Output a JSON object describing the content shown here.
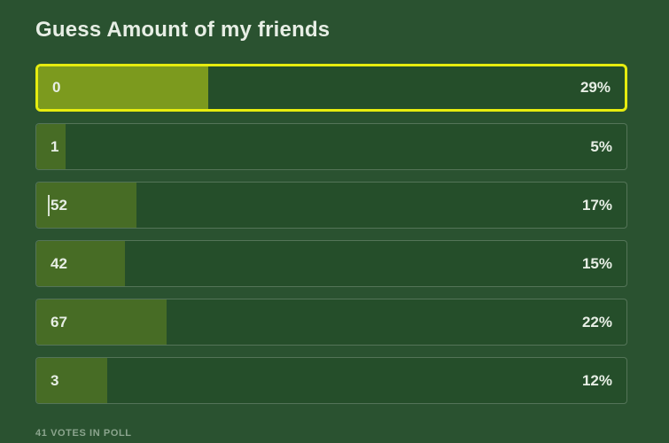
{
  "colors": {
    "page_bg": "#2a5230",
    "track_bg": "#254e2a",
    "fill_selected": "#7c9a1e",
    "fill_regular": "#476c25",
    "accent_border": "#e6ec0f",
    "text": "#e7eee5",
    "muted_text": "#8ca58e"
  },
  "poll": {
    "title": "Guess Amount of my friends",
    "options": [
      {
        "label": "0",
        "percent": 29,
        "percent_text": "29%",
        "selected": true
      },
      {
        "label": "1",
        "percent": 5,
        "percent_text": "5%",
        "selected": false
      },
      {
        "label": "52",
        "percent": 17,
        "percent_text": "17%",
        "selected": false,
        "text_cursor": true
      },
      {
        "label": "42",
        "percent": 15,
        "percent_text": "15%",
        "selected": false
      },
      {
        "label": "67",
        "percent": 22,
        "percent_text": "22%",
        "selected": false
      },
      {
        "label": "3",
        "percent": 12,
        "percent_text": "12%",
        "selected": false
      }
    ],
    "total_votes": 41,
    "footer_text": "41 VOTES IN POLL"
  },
  "chart_data": {
    "type": "bar",
    "title": "Guess Amount of my friends",
    "categories": [
      "0",
      "1",
      "52",
      "42",
      "67",
      "3"
    ],
    "values": [
      29,
      5,
      17,
      15,
      22,
      12
    ],
    "unit": "%",
    "xlim": [
      0,
      100
    ],
    "note": "horizontal poll result bars, total 41 votes"
  }
}
